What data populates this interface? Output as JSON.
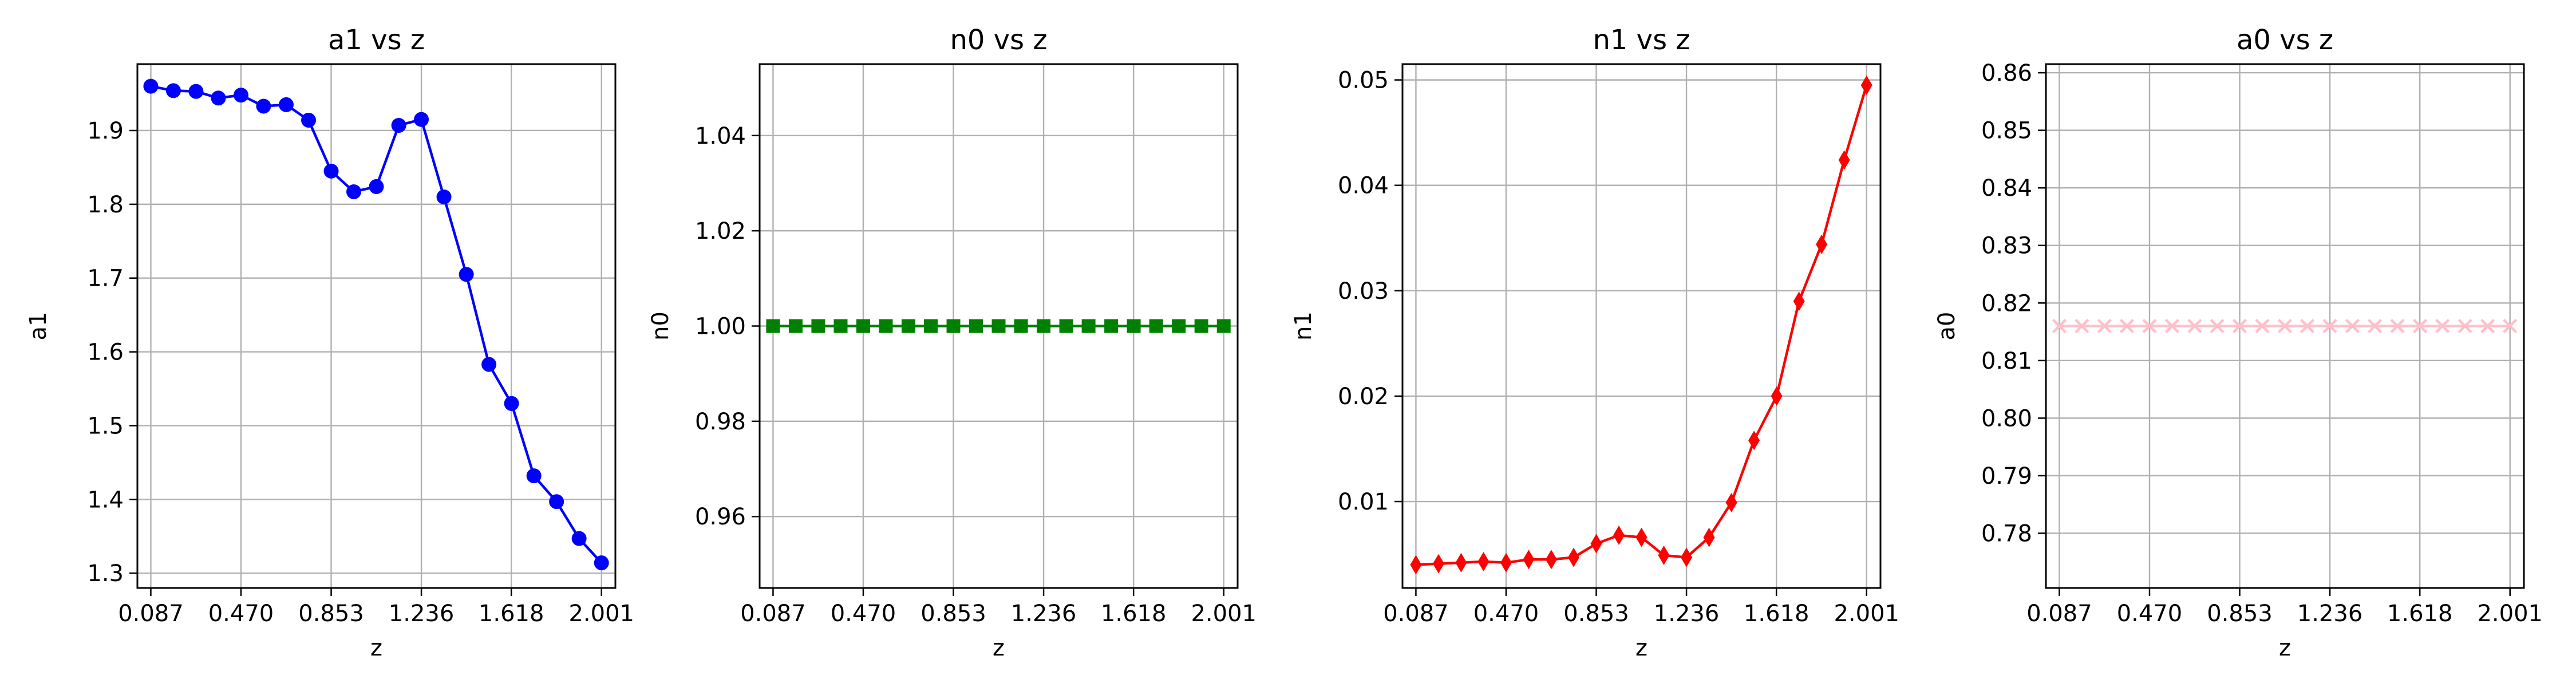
{
  "chart_data": [
    {
      "type": "line",
      "title": "a1 vs z",
      "xlabel": "z",
      "ylabel": "a1",
      "grid": true,
      "xlim": [
        0.03,
        2.06
      ],
      "ylim": [
        1.28,
        1.99
      ],
      "xticks": [
        0.087,
        0.47,
        0.853,
        1.236,
        1.618,
        2.001
      ],
      "xtick_labels": [
        "0.087",
        "0.470",
        "0.853",
        "1.236",
        "1.618",
        "2.001"
      ],
      "yticks": [
        1.3,
        1.4,
        1.5,
        1.6,
        1.7,
        1.8,
        1.9
      ],
      "ytick_labels": [
        "1.3",
        "1.4",
        "1.5",
        "1.6",
        "1.7",
        "1.8",
        "1.9"
      ],
      "color": "#0000ff",
      "marker": "circle",
      "series": [
        {
          "x": [
            0.087,
            0.183,
            0.279,
            0.374,
            0.47,
            0.566,
            0.662,
            0.757,
            0.853,
            0.949,
            1.045,
            1.14,
            1.236,
            1.332,
            1.427,
            1.523,
            1.619,
            1.714,
            1.81,
            1.906,
            2.001
          ],
          "y": [
            1.96,
            1.954,
            1.953,
            1.944,
            1.948,
            1.933,
            1.935,
            1.914,
            1.845,
            1.817,
            1.824,
            1.907,
            1.915,
            1.81,
            1.705,
            1.583,
            1.53,
            1.432,
            1.397,
            1.347,
            1.314
          ]
        }
      ]
    },
    {
      "type": "line",
      "title": "n0 vs z",
      "xlabel": "z",
      "ylabel": "n0",
      "grid": true,
      "xlim": [
        0.03,
        2.06
      ],
      "ylim": [
        0.945,
        1.055
      ],
      "xticks": [
        0.087,
        0.47,
        0.853,
        1.236,
        1.618,
        2.001
      ],
      "xtick_labels": [
        "0.087",
        "0.470",
        "0.853",
        "1.236",
        "1.618",
        "2.001"
      ],
      "yticks": [
        0.96,
        0.98,
        1.0,
        1.02,
        1.04
      ],
      "ytick_labels": [
        "0.96",
        "0.98",
        "1.00",
        "1.02",
        "1.04"
      ],
      "color": "#008000",
      "marker": "square",
      "series": [
        {
          "x": [
            0.087,
            0.183,
            0.279,
            0.374,
            0.47,
            0.566,
            0.662,
            0.757,
            0.853,
            0.949,
            1.045,
            1.14,
            1.236,
            1.332,
            1.427,
            1.523,
            1.619,
            1.714,
            1.81,
            1.906,
            2.001
          ],
          "y": [
            1.0,
            1.0,
            1.0,
            1.0,
            1.0,
            1.0,
            1.0,
            1.0,
            1.0,
            1.0,
            1.0,
            1.0,
            1.0,
            1.0,
            1.0,
            1.0,
            1.0,
            1.0,
            1.0,
            1.0,
            1.0
          ]
        }
      ]
    },
    {
      "type": "line",
      "title": "n1 vs z",
      "xlabel": "z",
      "ylabel": "n1",
      "grid": true,
      "xlim": [
        0.03,
        2.06
      ],
      "ylim": [
        0.0018,
        0.0515
      ],
      "xticks": [
        0.087,
        0.47,
        0.853,
        1.236,
        1.618,
        2.001
      ],
      "xtick_labels": [
        "0.087",
        "0.470",
        "0.853",
        "1.236",
        "1.618",
        "2.001"
      ],
      "yticks": [
        0.01,
        0.02,
        0.03,
        0.04,
        0.05
      ],
      "ytick_labels": [
        "0.01",
        "0.02",
        "0.03",
        "0.04",
        "0.05"
      ],
      "color": "#ff0000",
      "marker": "diamond",
      "series": [
        {
          "x": [
            0.087,
            0.183,
            0.279,
            0.374,
            0.47,
            0.566,
            0.662,
            0.757,
            0.853,
            0.949,
            1.045,
            1.14,
            1.236,
            1.332,
            1.427,
            1.523,
            1.619,
            1.714,
            1.81,
            1.906,
            2.001
          ],
          "y": [
            0.004,
            0.0041,
            0.0042,
            0.0043,
            0.0042,
            0.0045,
            0.0045,
            0.0047,
            0.006,
            0.0068,
            0.0066,
            0.0049,
            0.0047,
            0.0066,
            0.0099,
            0.0158,
            0.02,
            0.029,
            0.0344,
            0.0424,
            0.0495
          ]
        }
      ]
    },
    {
      "type": "line",
      "title": "a0 vs z",
      "xlabel": "z",
      "ylabel": "a0",
      "grid": true,
      "xlim": [
        0.03,
        2.06
      ],
      "ylim": [
        0.7705,
        0.8615
      ],
      "xticks": [
        0.087,
        0.47,
        0.853,
        1.236,
        1.618,
        2.001
      ],
      "xtick_labels": [
        "0.087",
        "0.470",
        "0.853",
        "1.236",
        "1.618",
        "2.001"
      ],
      "yticks": [
        0.78,
        0.79,
        0.8,
        0.81,
        0.82,
        0.83,
        0.84,
        0.85,
        0.86
      ],
      "ytick_labels": [
        "0.78",
        "0.79",
        "0.80",
        "0.81",
        "0.82",
        "0.83",
        "0.84",
        "0.85",
        "0.86"
      ],
      "color": "#ffc0cb",
      "marker": "x",
      "series": [
        {
          "x": [
            0.087,
            0.183,
            0.279,
            0.374,
            0.47,
            0.566,
            0.662,
            0.757,
            0.853,
            0.949,
            1.045,
            1.14,
            1.236,
            1.332,
            1.427,
            1.523,
            1.619,
            1.714,
            1.81,
            1.906,
            2.001
          ],
          "y": [
            0.816,
            0.816,
            0.816,
            0.816,
            0.816,
            0.816,
            0.816,
            0.816,
            0.816,
            0.816,
            0.816,
            0.816,
            0.816,
            0.816,
            0.816,
            0.816,
            0.816,
            0.816,
            0.816,
            0.816,
            0.816
          ]
        }
      ]
    }
  ]
}
